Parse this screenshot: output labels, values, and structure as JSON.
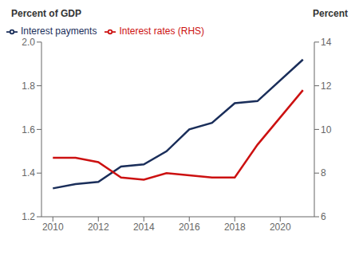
{
  "chart_data": {
    "type": "line",
    "x": [
      2010,
      2011,
      2012,
      2013,
      2014,
      2015,
      2016,
      2017,
      2018,
      2019,
      2021
    ],
    "series": [
      {
        "name": "Interest payments",
        "color": "#1a2e5a",
        "values": [
          1.33,
          1.35,
          1.36,
          1.43,
          1.44,
          1.5,
          1.6,
          1.63,
          1.72,
          1.73,
          1.92
        ]
      },
      {
        "name": "Interest rates (RHS)",
        "color": "#cc1111",
        "axis": "y2",
        "values": [
          8.7,
          8.7,
          8.5,
          7.8,
          7.7,
          8.0,
          7.9,
          7.8,
          7.8,
          9.3,
          11.8
        ]
      }
    ],
    "ylabel": "Percent of GDP",
    "y2label": "Percent",
    "xlim": [
      2009.5,
      2021.5
    ],
    "xticks": [
      2010,
      2012,
      2014,
      2016,
      2018,
      2020
    ],
    "ylim": [
      1.2,
      2.0
    ],
    "yticks": [
      1.2,
      1.4,
      1.6,
      1.8,
      {
        "value": 2.0,
        "label": "2.0"
      }
    ],
    "y2lim": [
      6,
      14
    ],
    "y2ticks": [
      6,
      8,
      10,
      12,
      14
    ],
    "grid": false,
    "legend": "upper left"
  }
}
